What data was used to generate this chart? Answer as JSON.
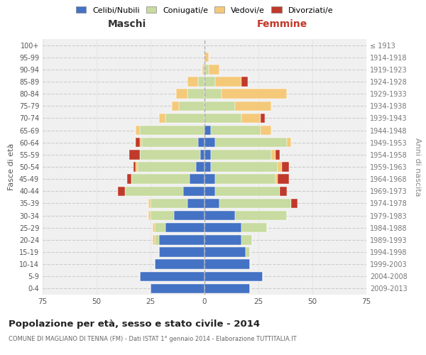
{
  "age_groups_bottom_to_top": [
    "0-4",
    "5-9",
    "10-14",
    "15-19",
    "20-24",
    "25-29",
    "30-34",
    "35-39",
    "40-44",
    "45-49",
    "50-54",
    "55-59",
    "60-64",
    "65-69",
    "70-74",
    "75-79",
    "80-84",
    "85-89",
    "90-94",
    "95-99",
    "100+"
  ],
  "birth_years_bottom_to_top": [
    "2009-2013",
    "2004-2008",
    "1999-2003",
    "1994-1998",
    "1989-1993",
    "1984-1988",
    "1979-1983",
    "1974-1978",
    "1969-1973",
    "1964-1968",
    "1959-1963",
    "1954-1958",
    "1949-1953",
    "1944-1948",
    "1939-1943",
    "1934-1938",
    "1929-1933",
    "1924-1928",
    "1919-1923",
    "1914-1918",
    "≤ 1913"
  ],
  "maschi": {
    "celibi": [
      25,
      30,
      23,
      21,
      21,
      18,
      14,
      8,
      10,
      7,
      4,
      2,
      3,
      0,
      0,
      0,
      0,
      0,
      0,
      0,
      0
    ],
    "coniugati": [
      0,
      0,
      0,
      0,
      2,
      5,
      11,
      17,
      27,
      27,
      27,
      28,
      26,
      30,
      18,
      12,
      8,
      3,
      0,
      0,
      0
    ],
    "vedovi": [
      0,
      0,
      0,
      0,
      1,
      1,
      1,
      1,
      0,
      0,
      1,
      0,
      1,
      2,
      3,
      3,
      5,
      5,
      1,
      0,
      0
    ],
    "divorziati": [
      0,
      0,
      0,
      0,
      0,
      0,
      0,
      0,
      3,
      2,
      1,
      5,
      2,
      0,
      0,
      0,
      0,
      0,
      0,
      0,
      0
    ]
  },
  "femmine": {
    "nubili": [
      21,
      27,
      21,
      19,
      17,
      17,
      14,
      7,
      5,
      5,
      3,
      3,
      5,
      3,
      0,
      0,
      0,
      0,
      0,
      0,
      0
    ],
    "coniugate": [
      0,
      0,
      0,
      2,
      5,
      12,
      24,
      33,
      30,
      28,
      31,
      28,
      33,
      23,
      17,
      14,
      8,
      5,
      2,
      0,
      0
    ],
    "vedove": [
      0,
      0,
      0,
      0,
      0,
      0,
      0,
      0,
      0,
      1,
      2,
      2,
      2,
      5,
      9,
      17,
      30,
      12,
      5,
      2,
      0
    ],
    "divorziate": [
      0,
      0,
      0,
      0,
      0,
      0,
      0,
      3,
      3,
      5,
      3,
      2,
      0,
      0,
      2,
      0,
      0,
      3,
      0,
      0,
      0
    ]
  },
  "colors": {
    "celibi": "#4472C4",
    "coniugati": "#c8dba0",
    "vedovi": "#f5c97a",
    "divorziati": "#c0392b"
  },
  "title": "Popolazione per età, sesso e stato civile - 2014",
  "subtitle": "COMUNE DI MAGLIANO DI TENNA (FM) - Dati ISTAT 1° gennaio 2014 - Elaborazione TUTTITALIA.IT",
  "xlabel_left": "Maschi",
  "xlabel_right": "Femmine",
  "ylabel_left": "Fasce di età",
  "ylabel_right": "Anni di nascita",
  "xlim": 75,
  "legend_labels": [
    "Celibi/Nubili",
    "Coniugati/e",
    "Vedovi/e",
    "Divorziati/e"
  ],
  "bg_color": "#f0f0f0",
  "grid_color": "#cccccc"
}
